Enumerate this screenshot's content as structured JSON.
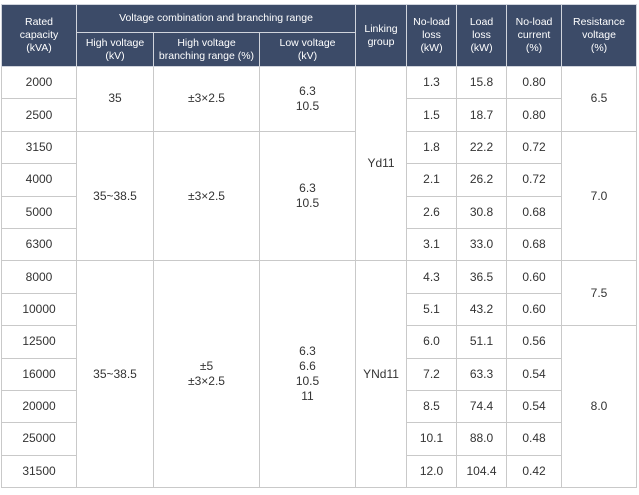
{
  "header": {
    "rated_capacity": "Rated\ncapacity\n(kVA)",
    "voltage_group": "Voltage combination and branching range",
    "high_voltage": "High voltage\n(kV)",
    "branching_range": "High voltage\nbranching range (%)",
    "low_voltage": "Low voltage\n(kV)",
    "linking_group": "Linking\ngroup",
    "no_load_loss": "No-load\nloss\n(kW)",
    "load_loss": "Load\nloss\n(kW)",
    "no_load_current": "No-load\ncurrent\n(%)",
    "resistance_voltage": "Resistance\nvoltage\n(%)"
  },
  "rated_capacity": [
    "2000",
    "2500",
    "3150",
    "4000",
    "5000",
    "6300",
    "8000",
    "10000",
    "12500",
    "16000",
    "20000",
    "25000",
    "31500"
  ],
  "high_voltage": [
    "35",
    "35~38.5",
    "35~38.5"
  ],
  "branching_range": [
    "±3×2.5",
    "±3×2.5",
    "±5\n±3×2.5"
  ],
  "low_voltage": [
    "6.3\n10.5",
    "6.3\n10.5",
    "6.3\n6.6\n10.5\n11"
  ],
  "linking_group": [
    "Yd11",
    "YNd11"
  ],
  "no_load_loss": [
    "1.3",
    "1.5",
    "1.8",
    "2.1",
    "2.6",
    "3.1",
    "4.3",
    "5.1",
    "6.0",
    "7.2",
    "8.5",
    "10.1",
    "12.0"
  ],
  "load_loss": [
    "15.8",
    "18.7",
    "22.2",
    "26.2",
    "30.8",
    "33.0",
    "36.5",
    "43.2",
    "51.1",
    "63.3",
    "74.4",
    "88.0",
    "104.4"
  ],
  "no_load_current": [
    "0.80",
    "0.80",
    "0.72",
    "0.72",
    "0.68",
    "0.68",
    "0.60",
    "0.60",
    "0.56",
    "0.54",
    "0.54",
    "0.48",
    "0.42"
  ],
  "resistance_voltage": [
    "6.5",
    "7.0",
    "7.5",
    "8.0"
  ]
}
